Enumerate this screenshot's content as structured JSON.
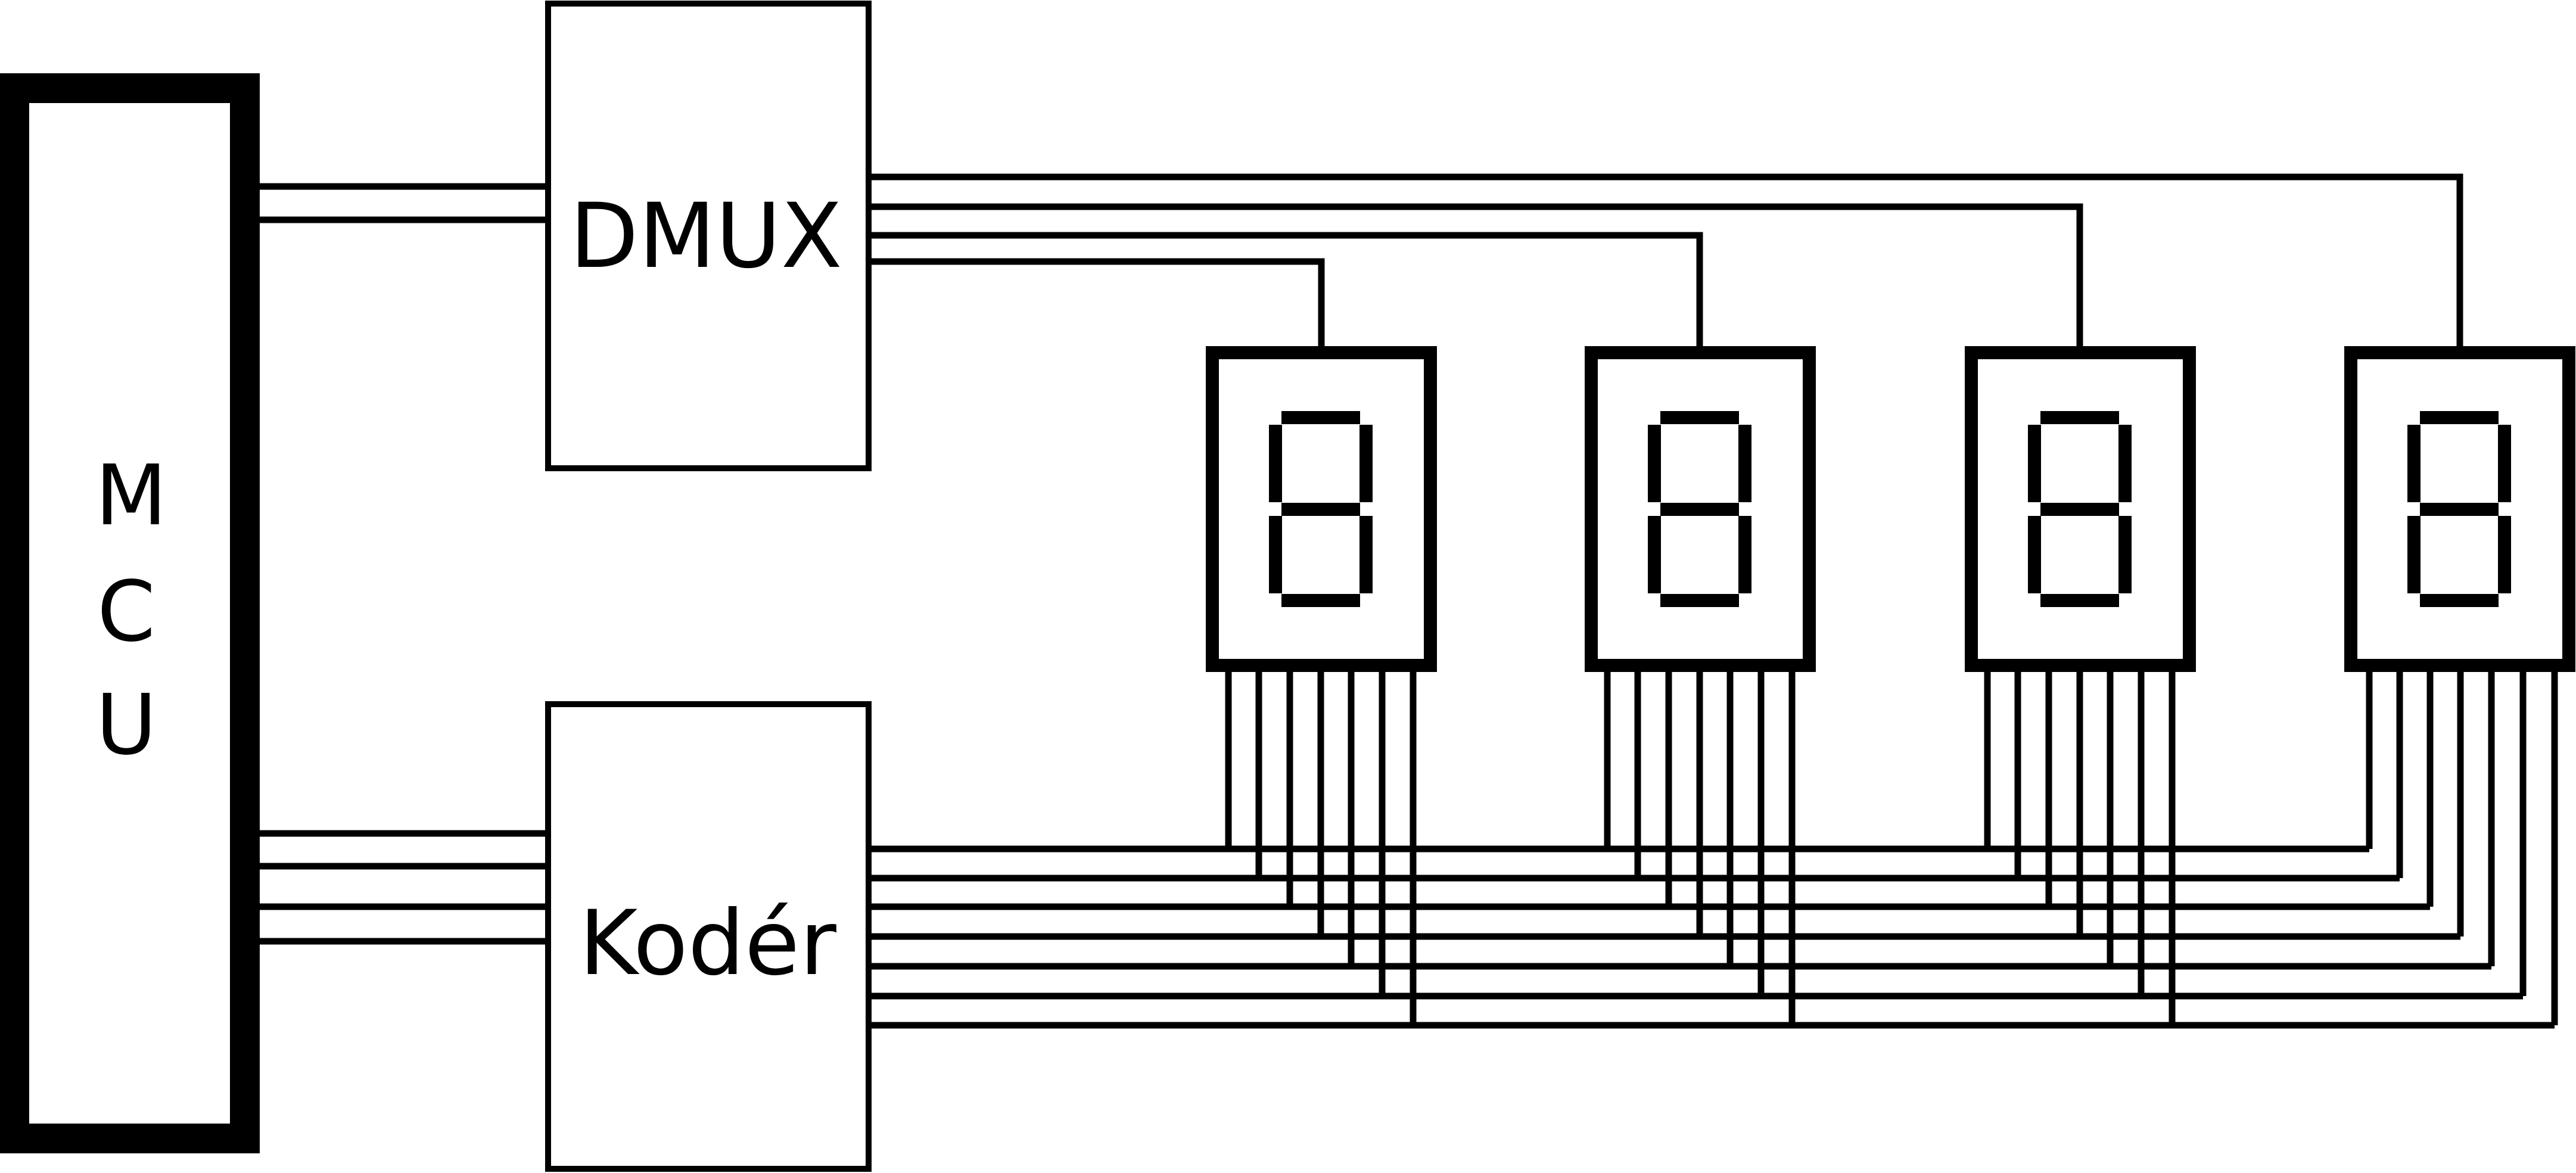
{
  "diagram": {
    "mcu": {
      "letters": [
        "M",
        "C",
        "U"
      ]
    },
    "dmux": {
      "label": "DMUX"
    },
    "koder": {
      "label": "Kodér"
    },
    "displays": [
      {
        "digit": "8"
      },
      {
        "digit": "8"
      },
      {
        "digit": "8"
      },
      {
        "digit": "8"
      }
    ],
    "mcu_to_dmux_wires": 2,
    "mcu_to_koder_wires": 4,
    "segment_bus_lines": 7,
    "colors": {
      "ink": "#000000",
      "paper": "#ffffff"
    }
  }
}
